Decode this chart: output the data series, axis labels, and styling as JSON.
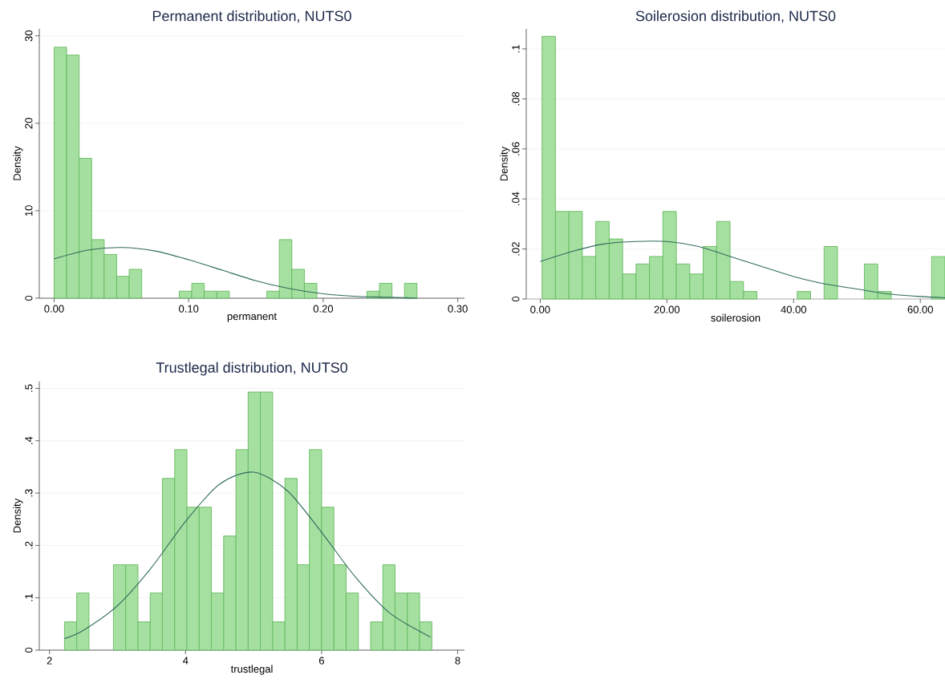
{
  "chart_data": [
    {
      "type": "histogram",
      "title": "Permanent distribution, NUTS0",
      "xlabel": "permanent",
      "ylabel": "Density",
      "color": "#a6e0a0",
      "grid": "y",
      "bins": [
        0,
        0.0093,
        0.0186,
        0.0279,
        0.0372,
        0.0465,
        0.0558,
        0.0651,
        0.0744,
        0.0837,
        0.093,
        0.1023,
        0.1116,
        0.1209,
        0.1302,
        0.1395,
        0.1488,
        0.1581,
        0.1674,
        0.1767,
        0.186,
        0.1953,
        0.2046,
        0.2139,
        0.2232,
        0.2325,
        0.2418,
        0.2511,
        0.2604,
        0.2697
      ],
      "values": [
        28.7,
        27.8,
        16.0,
        6.7,
        5.0,
        2.5,
        3.3,
        0,
        0,
        0,
        0.8,
        1.7,
        0.8,
        0.8,
        0,
        0,
        0,
        0.8,
        6.7,
        3.3,
        1.7,
        0,
        0,
        0,
        0,
        0.8,
        1.7,
        0,
        1.7
      ],
      "series": [
        {
          "type": "line",
          "color": "#2f6b5e",
          "x": [
            0,
            0.025,
            0.05,
            0.075,
            0.1,
            0.125,
            0.15,
            0.175,
            0.2,
            0.225,
            0.25,
            0.27
          ],
          "values": [
            4.5,
            5.5,
            5.8,
            5.4,
            4.4,
            3.2,
            2.0,
            1.1,
            0.5,
            0.2,
            0.1,
            0.0
          ]
        }
      ],
      "xlim": [
        -0.011,
        0.305
      ],
      "ylim": [
        0,
        30.8
      ],
      "xticks": [
        {
          "value": 0,
          "label": "0.00"
        },
        {
          "value": 0.1,
          "label": "0.10"
        },
        {
          "value": 0.2,
          "label": "0.20"
        },
        {
          "value": 0.3,
          "label": "0.30"
        }
      ],
      "yticks": [
        0,
        10,
        20,
        30
      ]
    },
    {
      "type": "histogram",
      "title": "Soilerosion distribution, NUTS0",
      "xlabel": "soilerosion",
      "ylabel": "Density",
      "color": "#a6e0a0",
      "grid": "y",
      "bins": [
        0.29,
        2.41,
        4.53,
        6.65,
        8.77,
        10.89,
        13.01,
        15.13,
        17.25,
        19.37,
        21.49,
        23.61,
        25.73,
        27.85,
        29.97,
        32.09,
        34.21,
        36.33,
        38.45,
        40.57,
        42.69,
        44.81,
        46.93,
        49.05,
        51.17,
        53.29,
        55.41,
        57.53,
        59.65,
        61.77,
        63.89
      ],
      "values": [
        0.105,
        0.035,
        0.035,
        0.017,
        0.031,
        0.024,
        0.01,
        0.014,
        0.017,
        0.035,
        0.014,
        0.01,
        0.021,
        0.031,
        0.007,
        0.003,
        0,
        0,
        0,
        0.003,
        0,
        0.021,
        0,
        0,
        0.014,
        0.003,
        0,
        0,
        0,
        0.017
      ],
      "series": [
        {
          "type": "line",
          "color": "#2f6b5e",
          "x": [
            0,
            5,
            10,
            15,
            20,
            25,
            30,
            35,
            40,
            45,
            50,
            55,
            60,
            63.9
          ],
          "values": [
            0.015,
            0.019,
            0.022,
            0.023,
            0.023,
            0.021,
            0.017,
            0.013,
            0.009,
            0.006,
            0.004,
            0.002,
            0.001,
            0.0005
          ]
        }
      ],
      "xlim": [
        -2.2,
        63.9
      ],
      "ylim": [
        0,
        0.108
      ],
      "xticks": [
        {
          "value": 0,
          "label": "0.00"
        },
        {
          "value": 20,
          "label": "20.00"
        },
        {
          "value": 40,
          "label": "40.00"
        },
        {
          "value": 60,
          "label": "60.00"
        }
      ],
      "yticks": [
        0,
        {
          "value": 0.02,
          "label": ".02"
        },
        {
          "value": 0.04,
          "label": ".04"
        },
        {
          "value": 0.06,
          "label": ".06"
        },
        {
          "value": 0.08,
          "label": ".08"
        },
        {
          "value": 0.1,
          "label": ".1"
        }
      ]
    },
    {
      "type": "histogram",
      "title": "Trustlegal distribution, NUTS0",
      "xlabel": "trustlegal",
      "ylabel": "Density",
      "color": "#a6e0a0",
      "grid": "y",
      "bins": [
        2.22,
        2.4,
        2.58,
        2.76,
        2.94,
        3.12,
        3.3,
        3.48,
        3.66,
        3.84,
        4.02,
        4.2,
        4.38,
        4.56,
        4.74,
        4.92,
        5.1,
        5.28,
        5.46,
        5.64,
        5.82,
        6.0,
        6.18,
        6.36,
        6.54,
        6.72,
        6.9,
        7.08,
        7.26,
        7.44,
        7.62
      ],
      "values": [
        0.054,
        0.109,
        0,
        0,
        0.163,
        0.163,
        0.054,
        0.109,
        0.328,
        0.383,
        0.273,
        0.273,
        0.109,
        0.218,
        0.383,
        0.493,
        0.493,
        0.054,
        0.328,
        0.163,
        0.383,
        0.273,
        0.163,
        0.109,
        0,
        0.054,
        0.163,
        0.109,
        0.109,
        0.054
      ],
      "series": [
        {
          "type": "line",
          "color": "#2f6b5e",
          "x": [
            2.22,
            2.5,
            3,
            3.5,
            4,
            4.5,
            5,
            5.5,
            6,
            6.5,
            7,
            7.6
          ],
          "values": [
            0.022,
            0.038,
            0.085,
            0.158,
            0.246,
            0.317,
            0.34,
            0.304,
            0.225,
            0.139,
            0.071,
            0.025
          ]
        }
      ],
      "xlim": [
        1.85,
        8.1
      ],
      "ylim": [
        0,
        0.513
      ],
      "xticks": [
        2,
        4,
        6,
        8
      ],
      "yticks": [
        0,
        {
          "value": 0.1,
          "label": ".1"
        },
        {
          "value": 0.2,
          "label": ".2"
        },
        {
          "value": 0.3,
          "label": ".3"
        },
        {
          "value": 0.4,
          "label": ".4"
        },
        {
          "value": 0.5,
          "label": ".5"
        }
      ]
    }
  ]
}
